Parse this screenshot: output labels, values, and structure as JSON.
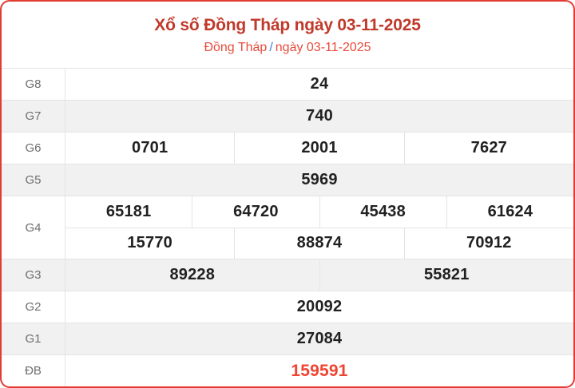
{
  "header": {
    "title": "Xổ số Đồng Tháp ngày 03-11-2025",
    "breadcrumb_region": "Đồng Tháp",
    "breadcrumb_separator": "/",
    "breadcrumb_date": "ngày 03-11-2025"
  },
  "colors": {
    "card_border": "#e23b33",
    "title_red": "#c0392b",
    "subtitle_red": "#e74c3c",
    "separator_blue": "#3b7ddd",
    "jackpot_red": "#f04432",
    "row_alt_bg": "#f1f1f1"
  },
  "results": {
    "rows": [
      {
        "label": "G8",
        "shaded": false,
        "highlight": false,
        "groups": [
          [
            "24"
          ]
        ]
      },
      {
        "label": "G7",
        "shaded": true,
        "highlight": false,
        "groups": [
          [
            "740"
          ]
        ]
      },
      {
        "label": "G6",
        "shaded": false,
        "highlight": false,
        "groups": [
          [
            "0701",
            "2001",
            "7627"
          ]
        ]
      },
      {
        "label": "G5",
        "shaded": true,
        "highlight": false,
        "groups": [
          [
            "5969"
          ]
        ]
      },
      {
        "label": "G4",
        "shaded": false,
        "highlight": false,
        "groups": [
          [
            "65181",
            "64720",
            "45438",
            "61624"
          ],
          [
            "15770",
            "88874",
            "70912"
          ]
        ]
      },
      {
        "label": "G3",
        "shaded": true,
        "highlight": false,
        "groups": [
          [
            "89228",
            "55821"
          ]
        ]
      },
      {
        "label": "G2",
        "shaded": false,
        "highlight": false,
        "groups": [
          [
            "20092"
          ]
        ]
      },
      {
        "label": "G1",
        "shaded": true,
        "highlight": false,
        "groups": [
          [
            "27084"
          ]
        ]
      },
      {
        "label": "ĐB",
        "shaded": false,
        "highlight": true,
        "groups": [
          [
            "159591"
          ]
        ]
      }
    ]
  }
}
